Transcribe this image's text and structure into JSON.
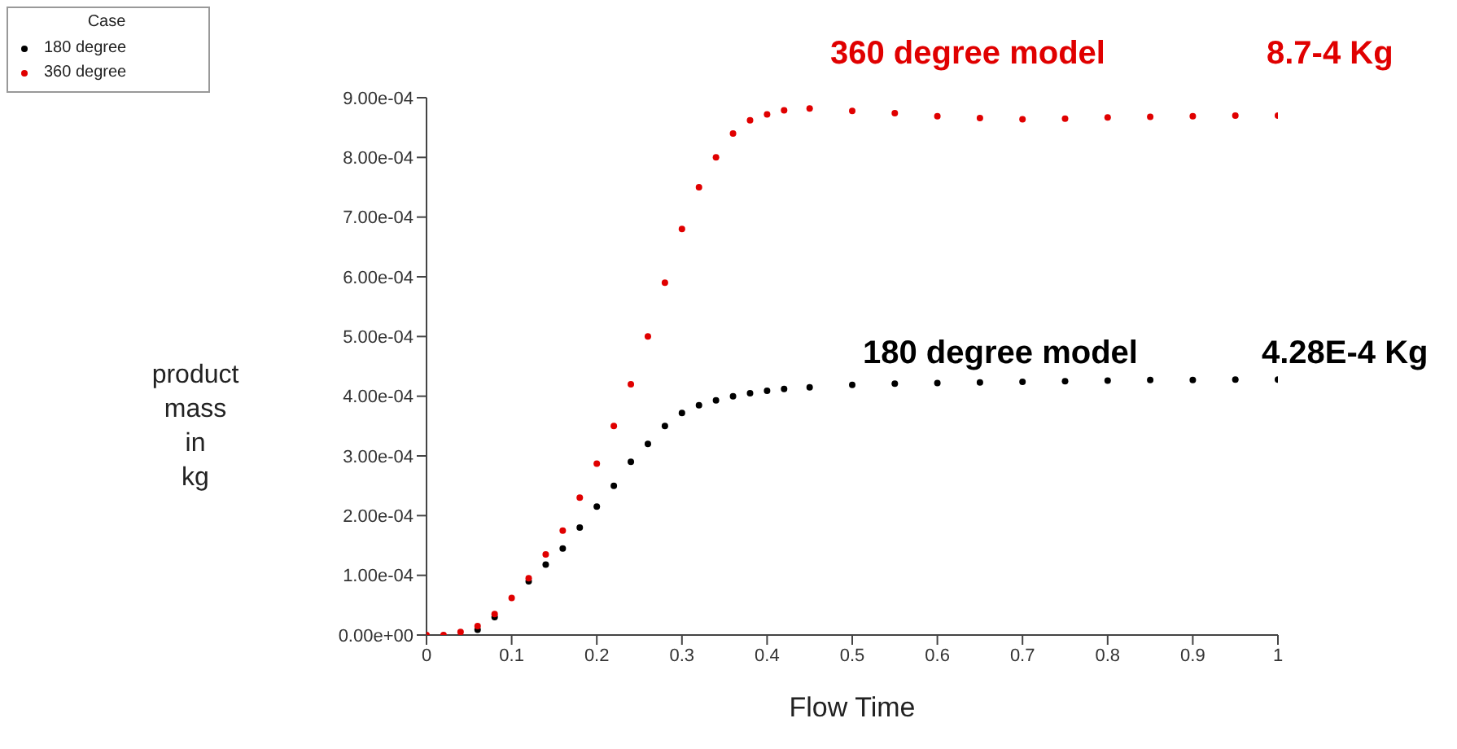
{
  "chart_data": {
    "type": "scatter",
    "xlabel": "Flow Time",
    "ylabel": "product mass in kg",
    "legend_title": "Case",
    "legend": "top left",
    "marker": "circle",
    "grid": false,
    "xlim": [
      0,
      1
    ],
    "xticks": [
      0,
      0.1,
      0.2,
      0.3,
      0.4,
      0.5,
      0.6,
      0.7,
      0.8,
      0.9,
      1
    ],
    "ylim": [
      0,
      0.0009
    ],
    "yticks": [
      {
        "value": 0,
        "label": "0.00e+00"
      },
      {
        "value": 0.0001,
        "label": "1.00e-04"
      },
      {
        "value": 0.0002,
        "label": "2.00e-04"
      },
      {
        "value": 0.0003,
        "label": "3.00e-04"
      },
      {
        "value": 0.0004,
        "label": "4.00e-04"
      },
      {
        "value": 0.0005,
        "label": "5.00e-04"
      },
      {
        "value": 0.0006,
        "label": "6.00e-04"
      },
      {
        "value": 0.0007,
        "label": "7.00e-04"
      },
      {
        "value": 0.0008,
        "label": "8.00e-04"
      },
      {
        "value": 0.0009,
        "label": "9.00e-04"
      }
    ],
    "x": [
      0,
      0.02,
      0.04,
      0.06,
      0.08,
      0.1,
      0.12,
      0.14,
      0.16,
      0.18,
      0.2,
      0.22,
      0.24,
      0.26,
      0.28,
      0.3,
      0.32,
      0.34,
      0.36,
      0.38,
      0.4,
      0.42,
      0.45,
      0.5,
      0.55,
      0.6,
      0.65,
      0.7,
      0.75,
      0.8,
      0.85,
      0.9,
      0.95,
      1
    ],
    "series": [
      {
        "name": "180 degree",
        "color": "#000000",
        "values": [
          null,
          null,
          null,
          9e-06,
          3e-05,
          null,
          9e-05,
          0.000118,
          0.000145,
          0.00018,
          0.000215,
          0.00025,
          0.00029,
          0.00032,
          0.00035,
          0.000372,
          0.000385,
          0.000393,
          0.0004,
          0.000405,
          0.000409,
          0.000412,
          0.000415,
          0.000419,
          0.000421,
          0.000422,
          0.000423,
          0.000424,
          0.000425,
          0.000426,
          0.000427,
          0.000427,
          0.000428,
          0.000428
        ]
      },
      {
        "name": "360 degree",
        "color": "#e00000",
        "values": [
          0,
          0,
          5e-06,
          1.5e-05,
          3.5e-05,
          6.2e-05,
          9.5e-05,
          0.000135,
          0.000175,
          0.00023,
          0.000287,
          0.00035,
          0.00042,
          0.0005,
          0.00059,
          0.00068,
          0.00075,
          0.0008,
          0.00084,
          0.000862,
          0.000872,
          0.000879,
          0.000882,
          0.000878,
          0.000874,
          0.000869,
          0.000866,
          0.000864,
          0.000865,
          0.000867,
          0.000868,
          0.000869,
          0.00087,
          0.00087
        ]
      }
    ],
    "annotations": [
      "360 degree model",
      "8.7-4 Kg",
      "180 degree model",
      "4.28E-4 Kg"
    ]
  }
}
